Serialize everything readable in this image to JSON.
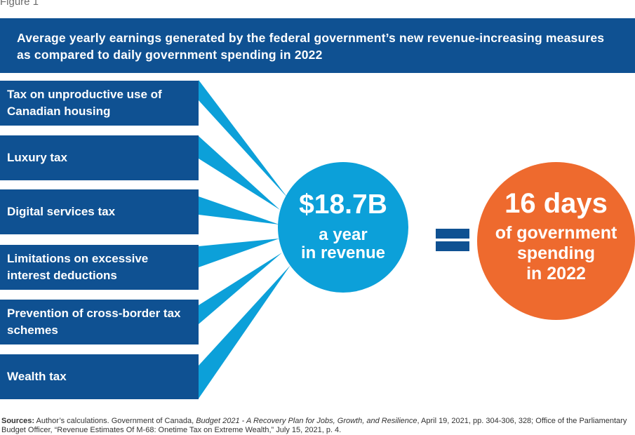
{
  "figure_label": "Figure 1",
  "title": "Average yearly earnings generated by the federal government’s new revenue-increasing measures as compared to daily government spending in 2022",
  "measures": [
    {
      "label": "Tax on unproductive use of Canadian housing"
    },
    {
      "label": "Luxury tax"
    },
    {
      "label": "Digital services tax"
    },
    {
      "label": "Limitations on excessive interest deductions"
    },
    {
      "label": "Prevention of cross-border tax schemes"
    },
    {
      "label": "Wealth tax"
    }
  ],
  "revenue": {
    "amount": "$18.7B",
    "line1": "a year",
    "line2": "in revenue"
  },
  "equals_symbol": "=",
  "spending": {
    "amount": "16 days",
    "line1": "of government",
    "line2": "spending",
    "line3": "in 2022"
  },
  "sources": {
    "label": "Sources:",
    "text1": " Author’s calculations. Government of Canada, ",
    "italic1": "Budget 2021 - A Recovery Plan for Jobs, Growth, and Resilience",
    "text2": ", April 19, 2021, pp. 304-306, 328; Office of the Parliamentary Budget Officer, “Revenue Estimates Of M-68: Onetime Tax on Extreme Wealth,” July 15, 2021, p. 4."
  },
  "colors": {
    "dark_blue": "#0f5192",
    "light_blue": "#0ca0d9",
    "orange": "#ee6a2e"
  }
}
